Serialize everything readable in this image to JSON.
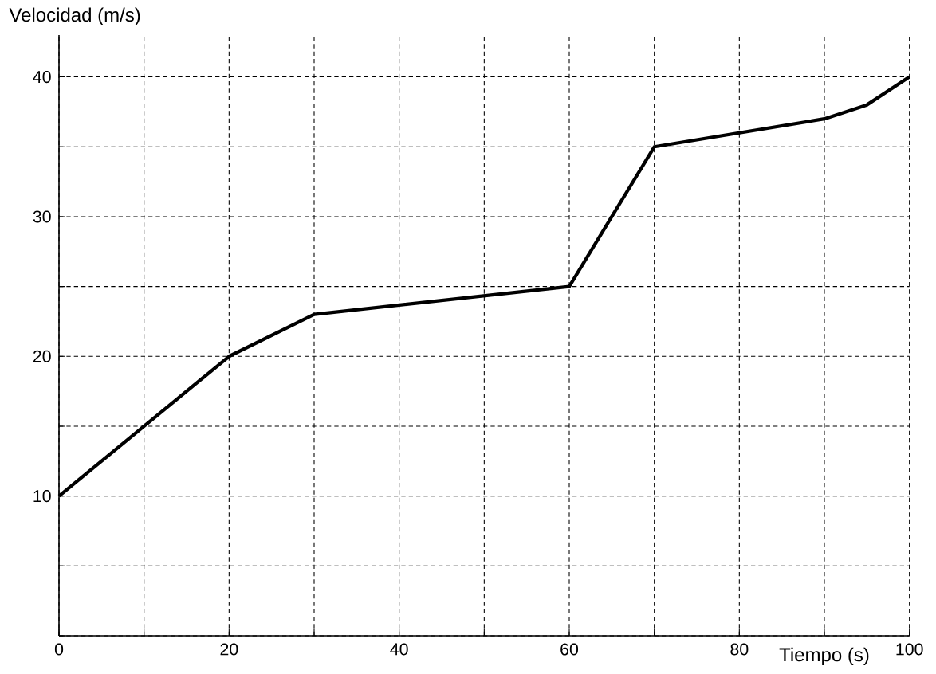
{
  "chart_data": {
    "type": "line",
    "xlabel": "Tiempo (s)",
    "ylabel": "Velocidad (m/s)",
    "x": [
      0,
      20,
      30,
      60,
      70,
      90,
      95,
      100
    ],
    "series": [
      {
        "color": "#000000",
        "values": [
          10,
          20,
          23,
          25,
          35,
          37,
          38,
          40
        ]
      }
    ],
    "xlim": [
      0,
      100
    ],
    "ylim": [
      0,
      43
    ],
    "xticks": [
      0,
      {
        "value": 10,
        "label": null
      },
      20,
      {
        "value": 30,
        "label": null
      },
      40,
      {
        "value": 50,
        "label": null
      },
      60,
      {
        "value": 70,
        "label": null
      },
      80,
      {
        "value": 90,
        "label": null
      },
      100
    ],
    "yticks": [
      {
        "value": 0,
        "label": null
      },
      {
        "value": 5,
        "label": null
      },
      10,
      {
        "value": 15,
        "label": null
      },
      20,
      {
        "value": 25,
        "label": null
      },
      30,
      {
        "value": 35,
        "label": null
      },
      40
    ],
    "grid": true,
    "marker": "none",
    "line_style": "solid"
  }
}
